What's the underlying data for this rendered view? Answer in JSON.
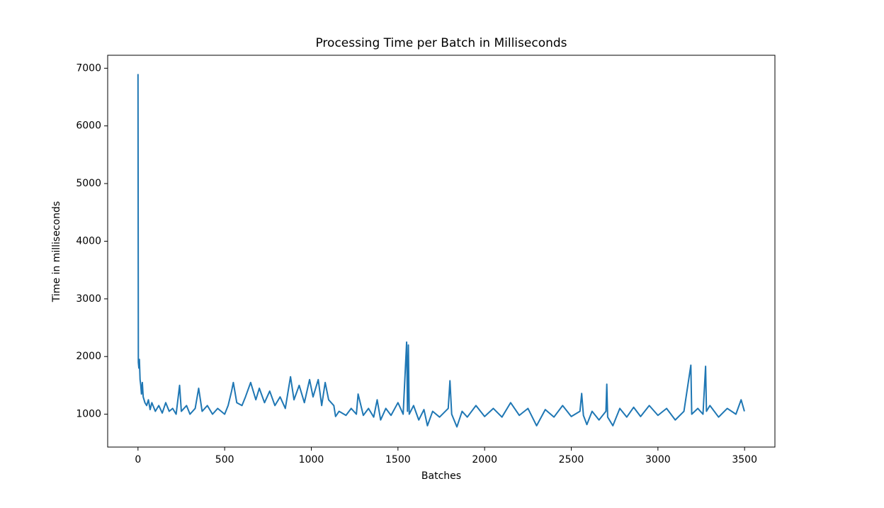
{
  "chart_data": {
    "type": "line",
    "title": "Processing Time per Batch in Milliseconds",
    "x_label": "Batches",
    "y_label": "Time in milliseconds",
    "x": [
      0,
      2,
      5,
      8,
      12,
      16,
      20,
      25,
      30,
      40,
      50,
      60,
      70,
      80,
      100,
      120,
      140,
      160,
      180,
      200,
      220,
      240,
      250,
      280,
      300,
      330,
      350,
      370,
      400,
      430,
      460,
      500,
      520,
      540,
      550,
      570,
      600,
      620,
      650,
      680,
      700,
      730,
      760,
      790,
      820,
      850,
      880,
      900,
      930,
      960,
      990,
      1010,
      1040,
      1060,
      1080,
      1100,
      1130,
      1140,
      1160,
      1200,
      1230,
      1260,
      1270,
      1300,
      1330,
      1360,
      1380,
      1400,
      1430,
      1460,
      1500,
      1530,
      1550,
      1555,
      1560,
      1565,
      1590,
      1620,
      1650,
      1670,
      1700,
      1740,
      1790,
      1800,
      1810,
      1840,
      1870,
      1900,
      1950,
      2000,
      2050,
      2100,
      2150,
      2200,
      2250,
      2300,
      2350,
      2400,
      2450,
      2500,
      2550,
      2560,
      2570,
      2590,
      2620,
      2660,
      2700,
      2705,
      2710,
      2740,
      2780,
      2820,
      2860,
      2900,
      2950,
      3000,
      3050,
      3100,
      3150,
      3190,
      3195,
      3230,
      3260,
      3275,
      3280,
      3300,
      3350,
      3400,
      3450,
      3480,
      3499
    ],
    "series": [
      {
        "name": "Processing time",
        "color": "#1f77b4",
        "values": [
          6900,
          1900,
          1800,
          1950,
          1600,
          1500,
          1350,
          1550,
          1300,
          1200,
          1150,
          1250,
          1080,
          1200,
          1050,
          1150,
          1020,
          1200,
          1050,
          1100,
          1000,
          1500,
          1050,
          1150,
          1000,
          1100,
          1450,
          1050,
          1150,
          1000,
          1100,
          1000,
          1150,
          1400,
          1550,
          1200,
          1150,
          1300,
          1550,
          1250,
          1450,
          1200,
          1400,
          1150,
          1300,
          1100,
          1650,
          1250,
          1500,
          1200,
          1600,
          1300,
          1600,
          1150,
          1550,
          1250,
          1150,
          960,
          1050,
          980,
          1100,
          1000,
          1350,
          980,
          1100,
          950,
          1250,
          900,
          1100,
          980,
          1200,
          1000,
          2250,
          1050,
          2200,
          1000,
          1150,
          900,
          1080,
          800,
          1050,
          950,
          1100,
          1580,
          1000,
          780,
          1050,
          950,
          1150,
          960,
          1100,
          950,
          1200,
          980,
          1100,
          800,
          1080,
          950,
          1150,
          960,
          1050,
          1360,
          980,
          820,
          1050,
          900,
          1050,
          1520,
          950,
          800,
          1100,
          950,
          1120,
          960,
          1150,
          980,
          1100,
          900,
          1050,
          1850,
          1000,
          1100,
          1000,
          1830,
          1050,
          1150,
          950,
          1100,
          1000,
          1250,
          1050
        ]
      }
    ],
    "xlim": [
      -175,
      3675
    ],
    "ylim": [
      430,
      7225
    ],
    "xticks": [
      0,
      500,
      1000,
      1500,
      2000,
      2500,
      3000,
      3500
    ],
    "yticks": [
      1000,
      2000,
      3000,
      4000,
      5000,
      6000,
      7000
    ]
  }
}
